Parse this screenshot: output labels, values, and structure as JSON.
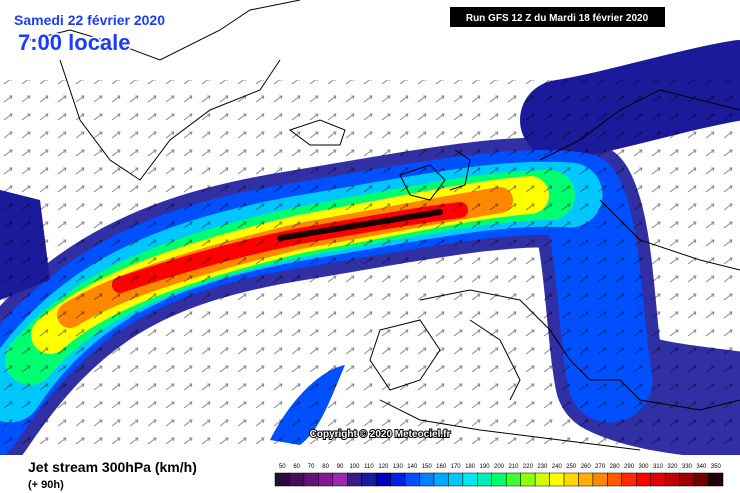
{
  "header": {
    "date": "Samedi 22 février 2020",
    "time": "7:00 locale",
    "run": "Run GFS 12 Z du Mardi 18 février 2020"
  },
  "copyright": "Copyright © 2020 Meteociel.fr",
  "legend": {
    "title": "Jet stream 300hPa (km/h)",
    "lead": "(+ 90h)"
  },
  "colorbar": {
    "ticks": [
      50,
      60,
      70,
      80,
      90,
      100,
      110,
      120,
      130,
      140,
      150,
      160,
      170,
      180,
      190,
      200,
      210,
      220,
      230,
      240,
      250,
      260,
      270,
      280,
      290,
      300,
      310,
      320,
      330,
      340,
      350
    ],
    "colors": [
      "#2a0a3a",
      "#4a0a5a",
      "#66107a",
      "#801a90",
      "#9a2aa8",
      "#3a1a8a",
      "#1a1a9a",
      "#0000c0",
      "#0020e8",
      "#0050ff",
      "#0080ff",
      "#00a8ff",
      "#00c8ff",
      "#00e8f0",
      "#00f0b0",
      "#00ff70",
      "#40ff30",
      "#90ff00",
      "#d0ff00",
      "#ffff00",
      "#ffd800",
      "#ffb000",
      "#ff8800",
      "#ff5a00",
      "#ff2a00",
      "#ff0000",
      "#e00000",
      "#c00000",
      "#a00000",
      "#700000",
      "#200000"
    ]
  }
}
